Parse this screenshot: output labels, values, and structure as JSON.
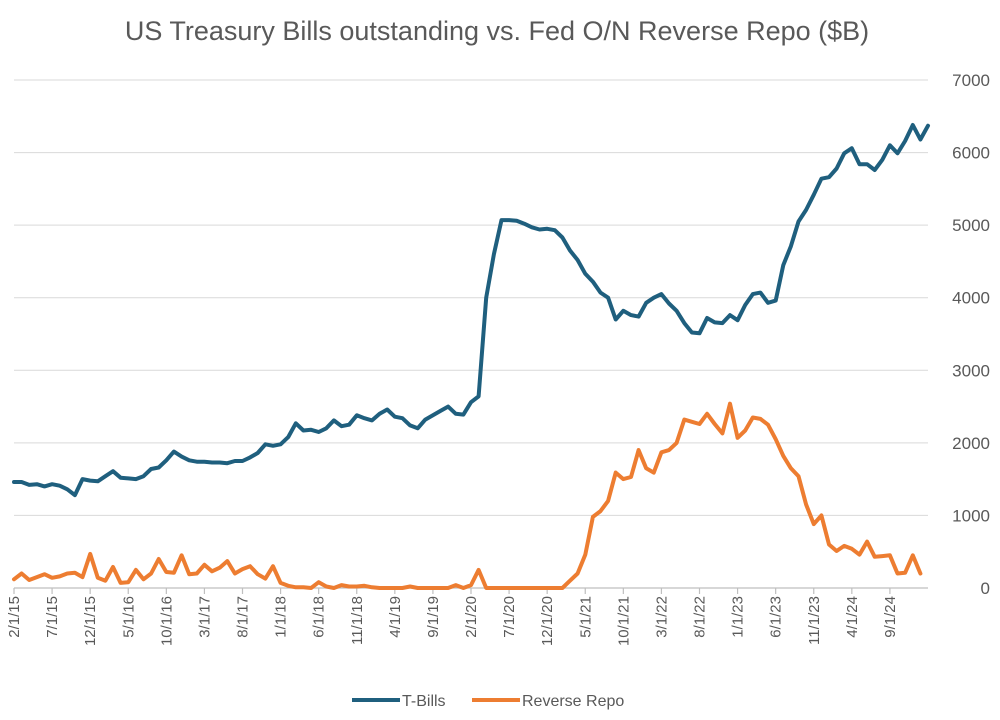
{
  "chart_data": {
    "type": "line",
    "title": "US Treasury Bills outstanding vs. Fed O/N Reverse Repo ($B)",
    "xlabel": "",
    "ylabel": "",
    "ylim": [
      0,
      7000
    ],
    "y_ticks": [
      0,
      1000,
      2000,
      3000,
      4000,
      5000,
      6000,
      7000
    ],
    "y_axis_side": "right",
    "x_range_months": [
      0,
      120
    ],
    "x_ticks": [
      {
        "label": "2/1/15",
        "m": 0
      },
      {
        "label": "7/1/15",
        "m": 5
      },
      {
        "label": "12/1/15",
        "m": 10
      },
      {
        "label": "5/1/16",
        "m": 15
      },
      {
        "label": "10/1/16",
        "m": 20
      },
      {
        "label": "3/1/17",
        "m": 25
      },
      {
        "label": "8/1/17",
        "m": 30
      },
      {
        "label": "1/1/18",
        "m": 35
      },
      {
        "label": "6/1/18",
        "m": 40
      },
      {
        "label": "11/1/18",
        "m": 45
      },
      {
        "label": "4/1/19",
        "m": 50
      },
      {
        "label": "9/1/19",
        "m": 55
      },
      {
        "label": "2/1/20",
        "m": 60
      },
      {
        "label": "7/1/20",
        "m": 65
      },
      {
        "label": "12/1/20",
        "m": 70
      },
      {
        "label": "5/1/21",
        "m": 75
      },
      {
        "label": "10/1/21",
        "m": 80
      },
      {
        "label": "3/1/22",
        "m": 85
      },
      {
        "label": "8/1/22",
        "m": 90
      },
      {
        "label": "1/1/23",
        "m": 95
      },
      {
        "label": "6/1/23",
        "m": 100
      },
      {
        "label": "11/1/23",
        "m": 105
      },
      {
        "label": "4/1/24",
        "m": 110
      },
      {
        "label": "9/1/24",
        "m": 115
      }
    ],
    "legend_position": "bottom",
    "series": [
      {
        "name": "T-Bills",
        "color": "#1f5f7e",
        "points": [
          [
            0,
            1460
          ],
          [
            1,
            1460
          ],
          [
            2,
            1420
          ],
          [
            3,
            1430
          ],
          [
            4,
            1400
          ],
          [
            5,
            1430
          ],
          [
            6,
            1410
          ],
          [
            7,
            1360
          ],
          [
            8,
            1280
          ],
          [
            9,
            1500
          ],
          [
            10,
            1480
          ],
          [
            11,
            1470
          ],
          [
            12,
            1540
          ],
          [
            13,
            1610
          ],
          [
            14,
            1520
          ],
          [
            15,
            1510
          ],
          [
            16,
            1500
          ],
          [
            17,
            1540
          ],
          [
            18,
            1640
          ],
          [
            19,
            1660
          ],
          [
            20,
            1760
          ],
          [
            21,
            1880
          ],
          [
            22,
            1810
          ],
          [
            23,
            1760
          ],
          [
            24,
            1740
          ],
          [
            25,
            1740
          ],
          [
            26,
            1730
          ],
          [
            27,
            1730
          ],
          [
            28,
            1720
          ],
          [
            29,
            1750
          ],
          [
            30,
            1750
          ],
          [
            31,
            1800
          ],
          [
            32,
            1860
          ],
          [
            33,
            1980
          ],
          [
            34,
            1960
          ],
          [
            35,
            1980
          ],
          [
            36,
            2080
          ],
          [
            37,
            2270
          ],
          [
            38,
            2170
          ],
          [
            39,
            2180
          ],
          [
            40,
            2150
          ],
          [
            41,
            2200
          ],
          [
            42,
            2310
          ],
          [
            43,
            2230
          ],
          [
            44,
            2250
          ],
          [
            45,
            2380
          ],
          [
            46,
            2340
          ],
          [
            47,
            2310
          ],
          [
            48,
            2400
          ],
          [
            49,
            2460
          ],
          [
            50,
            2360
          ],
          [
            51,
            2340
          ],
          [
            52,
            2240
          ],
          [
            53,
            2200
          ],
          [
            54,
            2320
          ],
          [
            55,
            2380
          ],
          [
            56,
            2440
          ],
          [
            57,
            2500
          ],
          [
            58,
            2400
          ],
          [
            59,
            2390
          ],
          [
            60,
            2560
          ],
          [
            61,
            2640
          ],
          [
            62,
            4000
          ],
          [
            63,
            4600
          ],
          [
            64,
            5070
          ],
          [
            65,
            5070
          ],
          [
            66,
            5060
          ],
          [
            67,
            5020
          ],
          [
            68,
            4970
          ],
          [
            69,
            4940
          ],
          [
            70,
            4950
          ],
          [
            71,
            4930
          ],
          [
            72,
            4830
          ],
          [
            73,
            4650
          ],
          [
            74,
            4520
          ],
          [
            75,
            4330
          ],
          [
            76,
            4220
          ],
          [
            77,
            4070
          ],
          [
            78,
            4000
          ],
          [
            79,
            3700
          ],
          [
            80,
            3820
          ],
          [
            81,
            3760
          ],
          [
            82,
            3740
          ],
          [
            83,
            3930
          ],
          [
            84,
            4000
          ],
          [
            85,
            4050
          ],
          [
            86,
            3920
          ],
          [
            87,
            3820
          ],
          [
            88,
            3650
          ],
          [
            89,
            3520
          ],
          [
            90,
            3510
          ],
          [
            91,
            3720
          ],
          [
            92,
            3660
          ],
          [
            93,
            3650
          ],
          [
            94,
            3760
          ],
          [
            95,
            3690
          ],
          [
            96,
            3900
          ],
          [
            97,
            4050
          ],
          [
            98,
            4070
          ],
          [
            99,
            3930
          ],
          [
            100,
            3960
          ],
          [
            101,
            4450
          ],
          [
            102,
            4710
          ],
          [
            103,
            5050
          ],
          [
            104,
            5210
          ],
          [
            105,
            5420
          ],
          [
            106,
            5640
          ],
          [
            107,
            5660
          ],
          [
            108,
            5780
          ],
          [
            109,
            5990
          ],
          [
            110,
            6060
          ],
          [
            111,
            5840
          ],
          [
            112,
            5840
          ],
          [
            113,
            5760
          ],
          [
            114,
            5900
          ],
          [
            115,
            6100
          ],
          [
            116,
            5990
          ],
          [
            117,
            6160
          ],
          [
            118,
            6380
          ],
          [
            119,
            6180
          ],
          [
            120,
            6370
          ]
        ]
      },
      {
        "name": "Reverse Repo",
        "color": "#ed7d31",
        "points": [
          [
            0,
            120
          ],
          [
            1,
            200
          ],
          [
            2,
            110
          ],
          [
            3,
            150
          ],
          [
            4,
            190
          ],
          [
            5,
            140
          ],
          [
            6,
            160
          ],
          [
            7,
            200
          ],
          [
            8,
            210
          ],
          [
            9,
            150
          ],
          [
            10,
            470
          ],
          [
            11,
            140
          ],
          [
            12,
            100
          ],
          [
            13,
            290
          ],
          [
            14,
            70
          ],
          [
            15,
            80
          ],
          [
            16,
            250
          ],
          [
            17,
            120
          ],
          [
            18,
            200
          ],
          [
            19,
            400
          ],
          [
            20,
            220
          ],
          [
            21,
            210
          ],
          [
            22,
            450
          ],
          [
            23,
            190
          ],
          [
            24,
            200
          ],
          [
            25,
            320
          ],
          [
            26,
            230
          ],
          [
            27,
            280
          ],
          [
            28,
            370
          ],
          [
            29,
            200
          ],
          [
            30,
            260
          ],
          [
            31,
            300
          ],
          [
            32,
            190
          ],
          [
            33,
            130
          ],
          [
            34,
            300
          ],
          [
            35,
            70
          ],
          [
            36,
            30
          ],
          [
            37,
            10
          ],
          [
            38,
            10
          ],
          [
            39,
            0
          ],
          [
            40,
            80
          ],
          [
            41,
            20
          ],
          [
            42,
            0
          ],
          [
            43,
            40
          ],
          [
            44,
            20
          ],
          [
            45,
            20
          ],
          [
            46,
            30
          ],
          [
            47,
            10
          ],
          [
            48,
            0
          ],
          [
            49,
            0
          ],
          [
            50,
            0
          ],
          [
            51,
            0
          ],
          [
            52,
            20
          ],
          [
            53,
            0
          ],
          [
            54,
            0
          ],
          [
            55,
            0
          ],
          [
            56,
            0
          ],
          [
            57,
            0
          ],
          [
            58,
            40
          ],
          [
            59,
            0
          ],
          [
            60,
            40
          ],
          [
            61,
            250
          ],
          [
            62,
            0
          ],
          [
            63,
            0
          ],
          [
            64,
            0
          ],
          [
            65,
            0
          ],
          [
            66,
            0
          ],
          [
            67,
            0
          ],
          [
            68,
            0
          ],
          [
            69,
            0
          ],
          [
            70,
            0
          ],
          [
            71,
            0
          ],
          [
            72,
            0
          ],
          [
            73,
            100
          ],
          [
            74,
            200
          ],
          [
            75,
            460
          ],
          [
            76,
            980
          ],
          [
            77,
            1060
          ],
          [
            78,
            1200
          ],
          [
            79,
            1590
          ],
          [
            80,
            1500
          ],
          [
            81,
            1530
          ],
          [
            82,
            1900
          ],
          [
            83,
            1650
          ],
          [
            84,
            1590
          ],
          [
            85,
            1870
          ],
          [
            86,
            1900
          ],
          [
            87,
            2000
          ],
          [
            88,
            2320
          ],
          [
            89,
            2290
          ],
          [
            90,
            2260
          ],
          [
            91,
            2400
          ],
          [
            92,
            2260
          ],
          [
            93,
            2130
          ],
          [
            94,
            2540
          ],
          [
            95,
            2070
          ],
          [
            96,
            2170
          ],
          [
            97,
            2350
          ],
          [
            98,
            2330
          ],
          [
            99,
            2250
          ],
          [
            100,
            2050
          ],
          [
            101,
            1820
          ],
          [
            102,
            1650
          ],
          [
            103,
            1540
          ],
          [
            104,
            1150
          ],
          [
            105,
            880
          ],
          [
            106,
            1000
          ],
          [
            107,
            600
          ],
          [
            108,
            510
          ],
          [
            109,
            580
          ],
          [
            110,
            540
          ],
          [
            111,
            460
          ],
          [
            112,
            640
          ],
          [
            113,
            430
          ],
          [
            114,
            440
          ],
          [
            115,
            450
          ],
          [
            116,
            200
          ],
          [
            117,
            210
          ],
          [
            118,
            450
          ],
          [
            119,
            200
          ]
        ]
      }
    ]
  }
}
